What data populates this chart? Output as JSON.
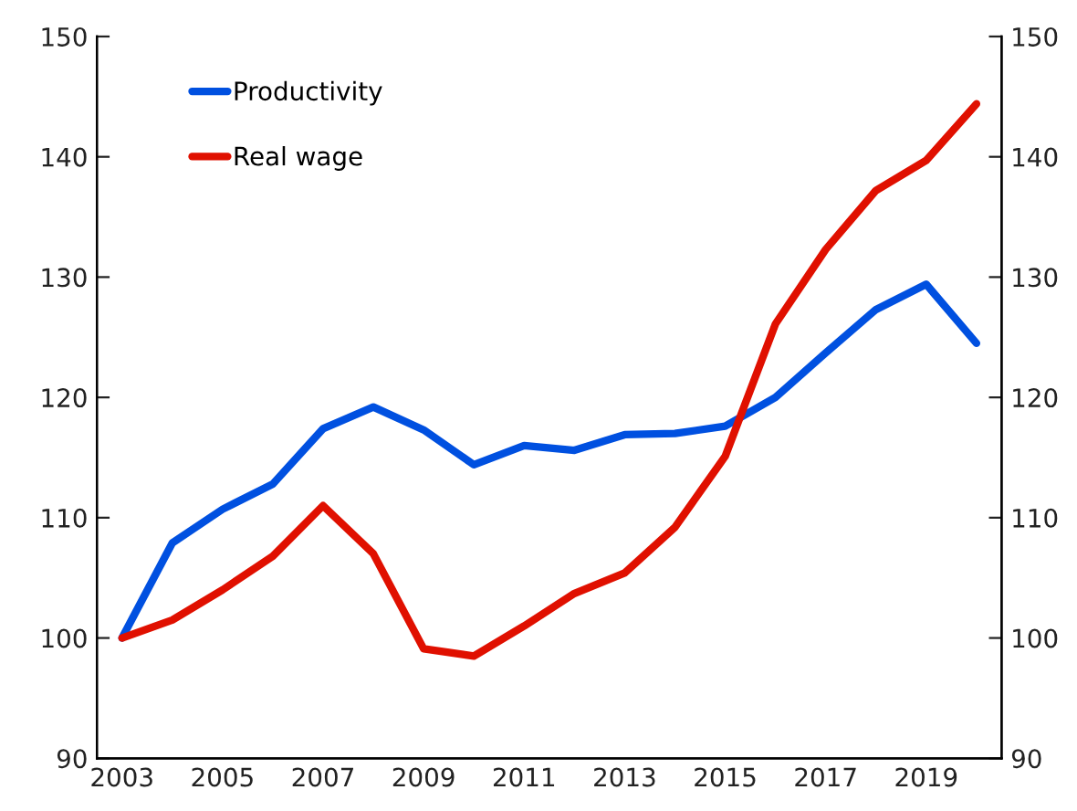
{
  "chart_data": {
    "type": "line",
    "x": [
      2003,
      2004,
      2005,
      2006,
      2007,
      2008,
      2009,
      2010,
      2011,
      2012,
      2013,
      2014,
      2015,
      2016,
      2017,
      2018,
      2019,
      2020
    ],
    "series": [
      {
        "name": "Productivity",
        "color": "#0050e0",
        "values": [
          100,
          107.9,
          110.7,
          112.8,
          117.4,
          119.2,
          117.3,
          114.4,
          116.0,
          115.6,
          116.9,
          117.0,
          117.6,
          120.0,
          123.7,
          127.3,
          129.4,
          124.5
        ]
      },
      {
        "name": "Real wage",
        "color": "#e01000",
        "values": [
          100,
          101.5,
          104.0,
          106.8,
          111.0,
          107.0,
          99.1,
          98.5,
          101.0,
          103.7,
          105.4,
          109.2,
          115.1,
          126.1,
          132.3,
          137.2,
          139.7,
          144.4
        ]
      }
    ],
    "xlim": [
      2002.5,
      2020.5
    ],
    "xticks": [
      {
        "value": 2003,
        "label": "2003"
      },
      {
        "value": 2005,
        "label": "2005"
      },
      {
        "value": 2007,
        "label": "2007"
      },
      {
        "value": 2009,
        "label": "2009"
      },
      {
        "value": 2011,
        "label": "2011"
      },
      {
        "value": 2013,
        "label": "2013"
      },
      {
        "value": 2015,
        "label": "2015"
      },
      {
        "value": 2017,
        "label": "2017"
      },
      {
        "value": 2019,
        "label": "2019"
      }
    ],
    "ylim": [
      90,
      150
    ],
    "yticks": [
      90,
      100,
      110,
      120,
      130,
      140,
      150
    ],
    "y2lim": [
      90,
      150
    ],
    "y2ticks": [
      90,
      100,
      110,
      120,
      130,
      140,
      150
    ],
    "grid": false,
    "legend": "top left",
    "marker": "none",
    "line_style": "solid"
  }
}
